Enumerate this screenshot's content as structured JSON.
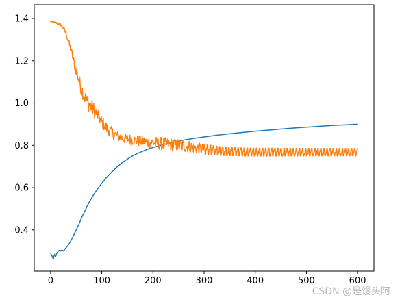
{
  "chart_data": {
    "type": "line",
    "title": "",
    "xlabel": "",
    "ylabel": "",
    "xlim": [
      -32,
      632
    ],
    "ylim": [
      0.205,
      1.465
    ],
    "x_ticks": [
      0,
      100,
      200,
      300,
      400,
      500,
      600
    ],
    "x_tick_labels": [
      "0",
      "100",
      "200",
      "300",
      "400",
      "500",
      "600"
    ],
    "y_ticks": [
      0.4,
      0.6,
      0.8,
      1.0,
      1.2,
      1.4
    ],
    "y_tick_labels": [
      "0.4",
      "0.6",
      "0.8",
      "1.0",
      "1.2",
      "1.4"
    ],
    "grid": false,
    "legend": "none",
    "series": [
      {
        "color": "#1f77b4",
        "points": [
          [
            0,
            0.29
          ],
          [
            2,
            0.28
          ],
          [
            4,
            0.27
          ],
          [
            5,
            0.26
          ],
          [
            6,
            0.27
          ],
          [
            7,
            0.28
          ],
          [
            8,
            0.285
          ],
          [
            10,
            0.275
          ],
          [
            12,
            0.29
          ],
          [
            15,
            0.3
          ],
          [
            18,
            0.305
          ],
          [
            20,
            0.3
          ],
          [
            22,
            0.305
          ],
          [
            25,
            0.3
          ],
          [
            28,
            0.31
          ],
          [
            30,
            0.315
          ],
          [
            35,
            0.33
          ],
          [
            40,
            0.35
          ],
          [
            45,
            0.375
          ],
          [
            50,
            0.4
          ],
          [
            55,
            0.425
          ],
          [
            60,
            0.455
          ],
          [
            65,
            0.48
          ],
          [
            70,
            0.505
          ],
          [
            75,
            0.53
          ],
          [
            80,
            0.55
          ],
          [
            85,
            0.57
          ],
          [
            90,
            0.588
          ],
          [
            95,
            0.605
          ],
          [
            100,
            0.62
          ],
          [
            110,
            0.65
          ],
          [
            120,
            0.675
          ],
          [
            130,
            0.698
          ],
          [
            140,
            0.718
          ],
          [
            150,
            0.735
          ],
          [
            160,
            0.75
          ],
          [
            170,
            0.762
          ],
          [
            180,
            0.772
          ],
          [
            190,
            0.782
          ],
          [
            200,
            0.79
          ],
          [
            220,
            0.803
          ],
          [
            240,
            0.815
          ],
          [
            260,
            0.825
          ],
          [
            280,
            0.833
          ],
          [
            300,
            0.84
          ],
          [
            325,
            0.848
          ],
          [
            350,
            0.855
          ],
          [
            375,
            0.861
          ],
          [
            400,
            0.867
          ],
          [
            425,
            0.872
          ],
          [
            450,
            0.877
          ],
          [
            475,
            0.882
          ],
          [
            500,
            0.886
          ],
          [
            525,
            0.89
          ],
          [
            550,
            0.894
          ],
          [
            575,
            0.897
          ],
          [
            600,
            0.9
          ]
        ]
      },
      {
        "color": "#ff7f0e",
        "noisy": true,
        "trend": [
          [
            0,
            1.385
          ],
          [
            10,
            1.38
          ],
          [
            20,
            1.37
          ],
          [
            25,
            1.355
          ],
          [
            30,
            1.33
          ],
          [
            35,
            1.29
          ],
          [
            40,
            1.25
          ],
          [
            45,
            1.2
          ],
          [
            50,
            1.15
          ],
          [
            55,
            1.11
          ],
          [
            60,
            1.07
          ],
          [
            65,
            1.04
          ],
          [
            70,
            1.01
          ],
          [
            80,
            0.98
          ],
          [
            90,
            0.95
          ],
          [
            100,
            0.91
          ],
          [
            110,
            0.88
          ],
          [
            120,
            0.86
          ],
          [
            130,
            0.845
          ],
          [
            140,
            0.835
          ],
          [
            150,
            0.83
          ],
          [
            170,
            0.822
          ],
          [
            190,
            0.815
          ],
          [
            210,
            0.81
          ],
          [
            230,
            0.805
          ],
          [
            250,
            0.8
          ],
          [
            270,
            0.795
          ],
          [
            290,
            0.785
          ],
          [
            310,
            0.778
          ],
          [
            340,
            0.77
          ],
          [
            400,
            0.767
          ],
          [
            500,
            0.767
          ],
          [
            600,
            0.767
          ]
        ],
        "spread": [
          [
            0,
            0.003
          ],
          [
            25,
            0.008
          ],
          [
            40,
            0.02
          ],
          [
            60,
            0.035
          ],
          [
            80,
            0.04
          ],
          [
            100,
            0.03
          ],
          [
            140,
            0.025
          ],
          [
            190,
            0.028
          ],
          [
            230,
            0.032
          ],
          [
            270,
            0.03
          ],
          [
            300,
            0.025
          ],
          [
            340,
            0.02
          ],
          [
            600,
            0.018
          ]
        ]
      }
    ]
  },
  "watermark": {
    "text": "CSDN @是馒头阿"
  }
}
